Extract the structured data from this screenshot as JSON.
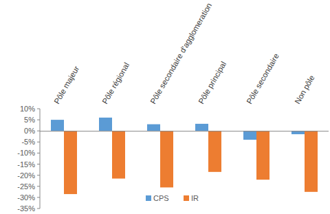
{
  "chart_data": {
    "type": "bar",
    "categories": [
      "Pôle majeur",
      "Pôle régional",
      "Pôle secondaire d'agglomeration",
      "Pôle principal",
      "Pôle secondaire",
      "Non pôle"
    ],
    "series": [
      {
        "name": "CPS",
        "color": "#5b9bd5",
        "values": [
          5,
          6,
          3,
          3.2,
          -4,
          -1.5
        ]
      },
      {
        "name": "IR",
        "color": "#ed7d31",
        "values": [
          -28.5,
          -21.5,
          -25.5,
          -18.5,
          -22,
          -27.5
        ]
      }
    ],
    "ylim": [
      -35,
      10
    ],
    "yticks": [
      {
        "value": -35,
        "label": "-35%"
      },
      {
        "value": -30,
        "label": "-30%"
      },
      {
        "value": -25,
        "label": "-25%"
      },
      {
        "value": -20,
        "label": "-20%"
      },
      {
        "value": -15,
        "label": "-15%"
      },
      {
        "value": -10,
        "label": "-10%"
      },
      {
        "value": -5,
        "label": "-5%"
      },
      {
        "value": 0,
        "label": "0%"
      },
      {
        "value": 5,
        "label": "5%"
      },
      {
        "value": 10,
        "label": "10%"
      }
    ],
    "grid": false,
    "legend": "bottom"
  }
}
